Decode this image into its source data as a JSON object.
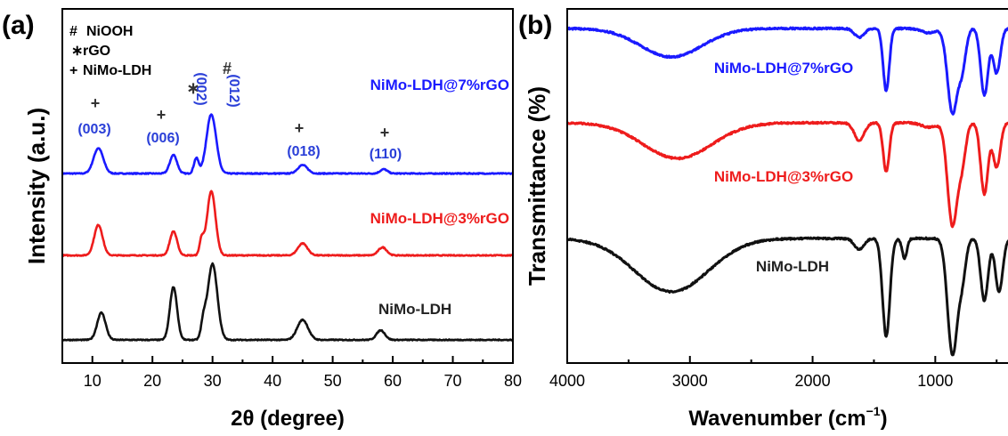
{
  "chart_data": [
    {
      "type": "line",
      "panel_label": "(a)",
      "xlabel": "2θ (degree)",
      "ylabel": "Intensity (a.u.)",
      "xlim": [
        5,
        80
      ],
      "xticks": [
        10,
        20,
        30,
        40,
        50,
        60,
        70,
        80
      ],
      "legend_markers": [
        {
          "symbol": "#",
          "text": "NiOOH"
        },
        {
          "symbol": "∗",
          "text": "rGO"
        },
        {
          "symbol": "+",
          "text": "NiMo-LDH"
        }
      ],
      "series": [
        {
          "name": "NiMo-LDH@7%rGO",
          "color": "#1a1aff",
          "peaks": [
            {
              "x": 11.0,
              "h": 0.3,
              "w": 0.8
            },
            {
              "x": 23.5,
              "h": 0.22,
              "w": 0.6
            },
            {
              "x": 27.3,
              "h": 0.18,
              "w": 0.4
            },
            {
              "x": 29.8,
              "h": 0.7,
              "w": 0.8
            },
            {
              "x": 45.0,
              "h": 0.1,
              "w": 0.8
            },
            {
              "x": 58.5,
              "h": 0.05,
              "w": 0.6
            }
          ]
        },
        {
          "name": "NiMo-LDH@3%rGO",
          "color": "#ee1c1c",
          "peaks": [
            {
              "x": 11.0,
              "h": 0.38,
              "w": 0.7
            },
            {
              "x": 23.5,
              "h": 0.3,
              "w": 0.6
            },
            {
              "x": 28.2,
              "h": 0.2,
              "w": 0.35
            },
            {
              "x": 29.8,
              "h": 0.8,
              "w": 0.7
            },
            {
              "x": 45.0,
              "h": 0.15,
              "w": 0.8
            },
            {
              "x": 58.3,
              "h": 0.1,
              "w": 0.7
            }
          ]
        },
        {
          "name": "NiMo-LDH",
          "color": "#111111",
          "peaks": [
            {
              "x": 11.5,
              "h": 0.34,
              "w": 0.7
            },
            {
              "x": 23.5,
              "h": 0.66,
              "w": 0.6
            },
            {
              "x": 28.5,
              "h": 0.2,
              "w": 0.4
            },
            {
              "x": 30.0,
              "h": 0.95,
              "w": 0.8
            },
            {
              "x": 45.0,
              "h": 0.25,
              "w": 0.9
            },
            {
              "x": 58.0,
              "h": 0.12,
              "w": 0.7
            }
          ]
        }
      ],
      "annotations": [
        {
          "text": "(003)",
          "x": 11.0,
          "symbol": "+"
        },
        {
          "text": "(006)",
          "x": 22.0,
          "symbol": "+"
        },
        {
          "text": "(002)",
          "x": 26.8,
          "symbol": "∗"
        },
        {
          "text": "(012)",
          "x": 31.5,
          "symbol": "#"
        },
        {
          "text": "(018)",
          "x": 45.0,
          "symbol": "+"
        },
        {
          "text": "(110)",
          "x": 59.0,
          "symbol": "+"
        }
      ],
      "grid": false
    },
    {
      "type": "line",
      "panel_label": "(b)",
      "xlabel": "Wavenumber (cm",
      "xlabel_sup": "−1",
      "xlabel_close": ")",
      "ylabel": "Transmittance (%)",
      "xlim": [
        4000,
        400
      ],
      "x_reversed": true,
      "xticks": [
        4000,
        3000,
        2000,
        1000
      ],
      "series": [
        {
          "name": "NiMo-LDH@7%rGO",
          "color": "#1a1aff",
          "bands": [
            {
              "x": 3150,
              "d": 0.32,
              "w": 250
            },
            {
              "x": 1620,
              "d": 0.1,
              "w": 40
            },
            {
              "x": 1400,
              "d": 0.7,
              "w": 25
            },
            {
              "x": 1050,
              "d": 0.05,
              "w": 60
            },
            {
              "x": 860,
              "d": 0.95,
              "w": 40
            },
            {
              "x": 780,
              "d": 0.4,
              "w": 30
            },
            {
              "x": 600,
              "d": 0.75,
              "w": 30
            },
            {
              "x": 500,
              "d": 0.5,
              "w": 30
            }
          ]
        },
        {
          "name": "NiMo-LDH@3%rGO",
          "color": "#ee1c1c",
          "bands": [
            {
              "x": 3100,
              "d": 0.4,
              "w": 280
            },
            {
              "x": 1620,
              "d": 0.2,
              "w": 40
            },
            {
              "x": 1400,
              "d": 0.55,
              "w": 25
            },
            {
              "x": 1050,
              "d": 0.05,
              "w": 60
            },
            {
              "x": 860,
              "d": 1.15,
              "w": 40
            },
            {
              "x": 780,
              "d": 0.4,
              "w": 30
            },
            {
              "x": 600,
              "d": 0.8,
              "w": 30
            },
            {
              "x": 500,
              "d": 0.5,
              "w": 30
            }
          ]
        },
        {
          "name": "NiMo-LDH",
          "color": "#111111",
          "bands": [
            {
              "x": 3150,
              "d": 0.6,
              "w": 300
            },
            {
              "x": 1620,
              "d": 0.12,
              "w": 40
            },
            {
              "x": 1400,
              "d": 1.1,
              "w": 30
            },
            {
              "x": 1250,
              "d": 0.22,
              "w": 20
            },
            {
              "x": 860,
              "d": 1.3,
              "w": 40
            },
            {
              "x": 780,
              "d": 0.4,
              "w": 30
            },
            {
              "x": 600,
              "d": 0.7,
              "w": 30
            },
            {
              "x": 480,
              "d": 0.6,
              "w": 30
            }
          ]
        }
      ],
      "grid": false
    }
  ]
}
